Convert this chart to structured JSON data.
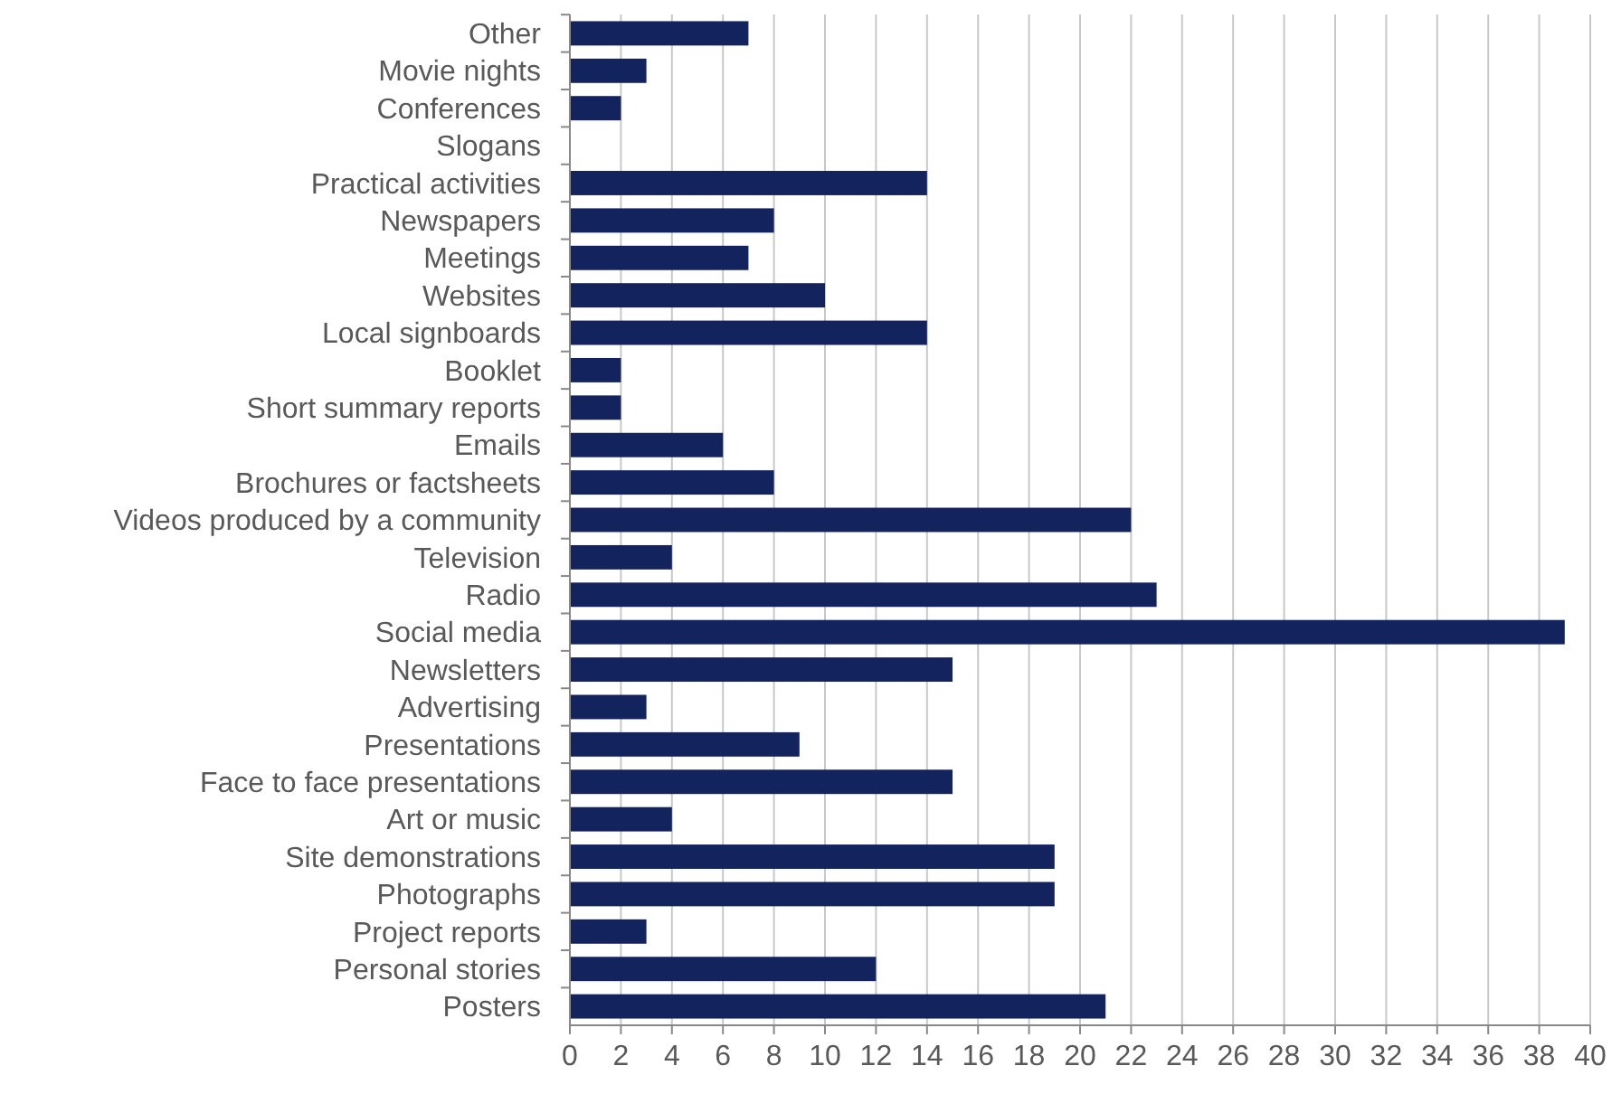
{
  "chart_data": {
    "type": "bar",
    "orientation": "horizontal",
    "categories": [
      "Other",
      "Movie nights",
      "Conferences",
      "Slogans",
      "Practical activities",
      "Newspapers",
      "Meetings",
      "Websites",
      "Local signboards",
      "Booklet",
      "Short summary reports",
      "Emails",
      "Brochures or factsheets",
      "Videos produced by a community",
      "Television",
      "Radio",
      "Social media",
      "Newsletters",
      "Advertising",
      "Presentations",
      "Face to face presentations",
      "Art or music",
      "Site demonstrations",
      "Photographs",
      "Project reports",
      "Personal stories",
      "Posters"
    ],
    "values": [
      7,
      3,
      2,
      0,
      14,
      8,
      7,
      10,
      14,
      2,
      2,
      6,
      8,
      22,
      4,
      23,
      39,
      15,
      3,
      9,
      15,
      4,
      19,
      19,
      3,
      12,
      21
    ],
    "color": "#13235e",
    "xlim": [
      0,
      40
    ],
    "xticks": [
      0,
      2,
      4,
      6,
      8,
      10,
      12,
      14,
      16,
      18,
      20,
      22,
      24,
      26,
      28,
      30,
      32,
      34,
      36,
      38,
      40
    ],
    "grid": "x"
  }
}
